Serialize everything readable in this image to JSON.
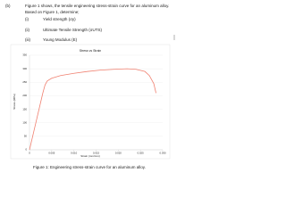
{
  "question": {
    "label": "(b)",
    "text": "Figure 1 shows, the tensile engineering stress-strain curve for an aluminum alloy.",
    "line2": "Based on Figure 1, determine;",
    "items": [
      {
        "num": "(i)",
        "text": "Yield strength (σy)"
      },
      {
        "num": "(ii)",
        "text": "Ultimate Tensile Strength (σUTS)"
      },
      {
        "num": "(iii)",
        "text": "Young Modulus (E)"
      }
    ]
  },
  "chart_data": {
    "type": "line",
    "title": "Stress vs Strain",
    "x_label": "Strain (mm/mm)",
    "y_label": "Stress (MPa)",
    "series": [
      {
        "color": "#f08070",
        "x": [
          0,
          0.001,
          0.002,
          0.003,
          0.0035,
          0.004,
          0.005,
          0.007,
          0.01,
          0.013,
          0.016,
          0.019,
          0.022,
          0.024,
          0.026,
          0.027,
          0.028,
          0.0285
        ],
        "values": [
          0,
          70,
          140,
          210,
          240,
          255,
          265,
          275,
          283,
          290,
          295,
          298,
          300,
          298,
          290,
          275,
          245,
          210
        ]
      }
    ],
    "xlim": [
      0,
      0.03
    ],
    "xticks": [
      0,
      0.005,
      {
        "value": 0.01,
        "label": "0.010"
      },
      0.015,
      {
        "value": 0.02,
        "label": "0.020"
      },
      0.025,
      {
        "value": 0.03,
        "label": "0.030"
      }
    ],
    "ylim": [
      0,
      350
    ],
    "yticks": [
      0,
      50,
      100,
      150,
      200,
      250,
      300,
      350
    ],
    "grid": true
  },
  "caption": "Figure 1: Engineering stress-strain curve for an aluminum alloy."
}
